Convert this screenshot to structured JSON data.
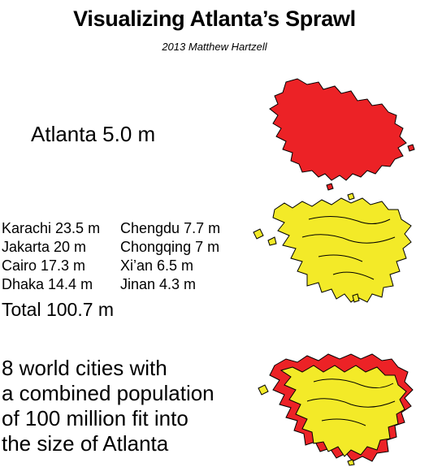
{
  "header": {
    "title": "Visualizing Atlanta’s Sprawl",
    "credit": "2013 Matthew Hartzell"
  },
  "atlanta": {
    "label": "Atlanta 5.0 m",
    "color": "#ec2226"
  },
  "cities": {
    "items": [
      "Karachi 23.5 m",
      "Chengdu 7.7 m",
      "Jakarta 20 m",
      "Chongqing 7 m",
      "Cairo 17.3 m",
      "Xi’an 6.5 m",
      "Dhaka 14.4 m",
      "Jinan 4.3 m"
    ],
    "total": "Total 100.7 m",
    "color": "#f3ea28"
  },
  "caption": {
    "lines": [
      "8 world cities with",
      "a combined population",
      "of 100 million fit into",
      "the size of Atlanta"
    ]
  }
}
